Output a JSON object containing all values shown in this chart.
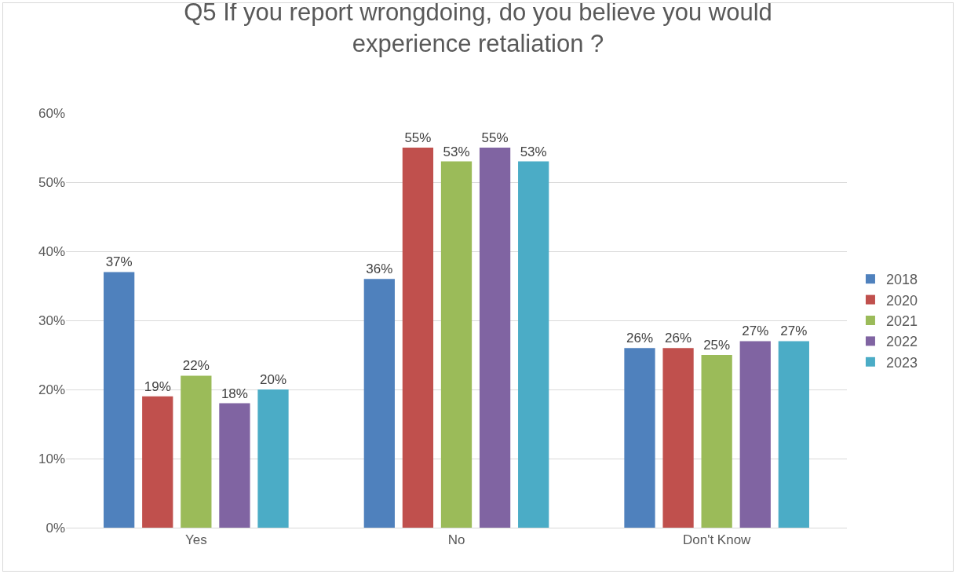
{
  "chart_data": {
    "type": "bar",
    "title": "Q5 If you report wrongdoing, do you believe you would experience retaliation ?",
    "categories": [
      "Yes",
      "No",
      "Don't Know"
    ],
    "series": [
      {
        "name": "2018",
        "color": "#4f81bd",
        "values": [
          37,
          36,
          26
        ],
        "value_labels": [
          "37%",
          "36%",
          "26%"
        ]
      },
      {
        "name": "2020",
        "color": "#c0504d",
        "values": [
          19,
          55,
          26
        ],
        "value_labels": [
          "19%",
          "55%",
          "26%"
        ]
      },
      {
        "name": "2021",
        "color": "#9bbb59",
        "values": [
          22,
          53,
          25
        ],
        "value_labels": [
          "22%",
          "53%",
          "25%"
        ]
      },
      {
        "name": "2022",
        "color": "#8064a2",
        "values": [
          18,
          55,
          27
        ],
        "value_labels": [
          "18%",
          "55%",
          "27%"
        ]
      },
      {
        "name": "2023",
        "color": "#4bacc6",
        "values": [
          20,
          53,
          27
        ],
        "value_labels": [
          "20%",
          "53%",
          "27%"
        ]
      }
    ],
    "ylim": [
      0,
      60
    ],
    "yticks": [
      {
        "value": 0,
        "label": "0%"
      },
      {
        "value": 10,
        "label": "10%"
      },
      {
        "value": 20,
        "label": "20%"
      },
      {
        "value": 30,
        "label": "30%"
      },
      {
        "value": 40,
        "label": "40%"
      },
      {
        "value": 50,
        "label": "50%"
      },
      {
        "value": 60,
        "label": "60%"
      }
    ],
    "grid": "y",
    "legend": "right"
  }
}
